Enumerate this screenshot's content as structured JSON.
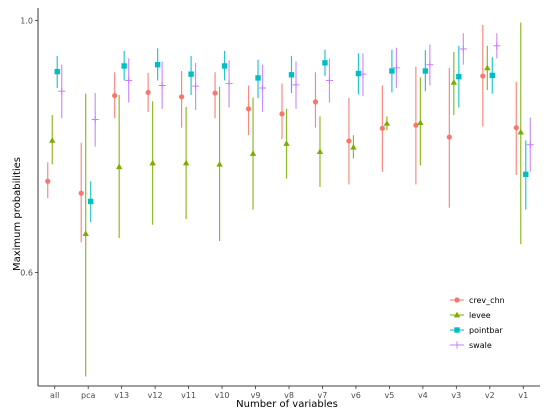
{
  "chart_data": {
    "type": "scatter",
    "title": "",
    "xlabel": "Number of variables",
    "ylabel": "Maximum probabilities",
    "categories": [
      "all",
      "pca",
      "v13",
      "v12",
      "v11",
      "v10",
      "v9",
      "v8",
      "v7",
      "v6",
      "v5",
      "v4",
      "v3",
      "v2",
      "v1"
    ],
    "y_ticks": [
      "0.6",
      "1.0"
    ],
    "ylim": [
      0.42,
      1.02
    ],
    "grid": false,
    "legend_placement": "bottom-right",
    "series": [
      {
        "name": "crev_chn",
        "color": "#F8766D",
        "marker": "circle",
        "points": [
          {
            "x": "all",
            "y": 0.745,
            "low": 0.718,
            "high": 0.775
          },
          {
            "x": "pca",
            "y": 0.726,
            "low": 0.648,
            "high": 0.806
          },
          {
            "x": "v13",
            "y": 0.881,
            "low": 0.845,
            "high": 0.918
          },
          {
            "x": "v12",
            "y": 0.886,
            "low": 0.855,
            "high": 0.917
          },
          {
            "x": "v11",
            "y": 0.879,
            "low": 0.83,
            "high": 0.92
          },
          {
            "x": "v10",
            "y": 0.885,
            "low": 0.845,
            "high": 0.918
          },
          {
            "x": "v9",
            "y": 0.86,
            "low": 0.818,
            "high": 0.897
          },
          {
            "x": "v8",
            "y": 0.852,
            "low": 0.812,
            "high": 0.9
          },
          {
            "x": "v7",
            "y": 0.871,
            "low": 0.83,
            "high": 0.918
          },
          {
            "x": "v6",
            "y": 0.809,
            "low": 0.74,
            "high": 0.877
          },
          {
            "x": "v5",
            "y": 0.829,
            "low": 0.76,
            "high": 0.897
          },
          {
            "x": "v4",
            "y": 0.834,
            "low": 0.74,
            "high": 0.927
          },
          {
            "x": "v3",
            "y": 0.815,
            "low": 0.703,
            "high": 0.925
          },
          {
            "x": "v2",
            "y": 0.912,
            "low": 0.832,
            "high": 0.993
          },
          {
            "x": "v1",
            "y": 0.83,
            "low": 0.755,
            "high": 0.903
          }
        ]
      },
      {
        "name": "levee",
        "color": "#7CAE00",
        "marker": "triangle",
        "points": [
          {
            "x": "all",
            "y": 0.81,
            "low": 0.772,
            "high": 0.85
          },
          {
            "x": "pca",
            "y": 0.662,
            "low": 0.435,
            "high": 0.884
          },
          {
            "x": "v13",
            "y": 0.768,
            "low": 0.655,
            "high": 0.882
          },
          {
            "x": "v12",
            "y": 0.774,
            "low": 0.676,
            "high": 0.872
          },
          {
            "x": "v11",
            "y": 0.774,
            "low": 0.685,
            "high": 0.863
          },
          {
            "x": "v10",
            "y": 0.772,
            "low": 0.65,
            "high": 0.895
          },
          {
            "x": "v9",
            "y": 0.789,
            "low": 0.7,
            "high": 0.878
          },
          {
            "x": "v8",
            "y": 0.805,
            "low": 0.749,
            "high": 0.86
          },
          {
            "x": "v7",
            "y": 0.792,
            "low": 0.736,
            "high": 0.848
          },
          {
            "x": "v6",
            "y": 0.799,
            "low": 0.781,
            "high": 0.818
          },
          {
            "x": "v5",
            "y": 0.837,
            "low": 0.826,
            "high": 0.848
          },
          {
            "x": "v4",
            "y": 0.838,
            "low": 0.77,
            "high": 0.91
          },
          {
            "x": "v3",
            "y": 0.902,
            "low": 0.85,
            "high": 0.95
          },
          {
            "x": "v2",
            "y": 0.925,
            "low": 0.89,
            "high": 0.96
          },
          {
            "x": "v1",
            "y": 0.823,
            "low": 0.645,
            "high": 0.997
          }
        ]
      },
      {
        "name": "pointbar",
        "color": "#00BFC4",
        "marker": "square",
        "points": [
          {
            "x": "all",
            "y": 0.919,
            "low": 0.893,
            "high": 0.944
          },
          {
            "x": "pca",
            "y": 0.713,
            "low": 0.68,
            "high": 0.745
          },
          {
            "x": "v13",
            "y": 0.928,
            "low": 0.905,
            "high": 0.952
          },
          {
            "x": "v12",
            "y": 0.93,
            "low": 0.905,
            "high": 0.956
          },
          {
            "x": "v11",
            "y": 0.915,
            "low": 0.882,
            "high": 0.944
          },
          {
            "x": "v10",
            "y": 0.928,
            "low": 0.905,
            "high": 0.952
          },
          {
            "x": "v9",
            "y": 0.909,
            "low": 0.877,
            "high": 0.938
          },
          {
            "x": "v8",
            "y": 0.914,
            "low": 0.885,
            "high": 0.944
          },
          {
            "x": "v7",
            "y": 0.933,
            "low": 0.912,
            "high": 0.954
          },
          {
            "x": "v6",
            "y": 0.916,
            "low": 0.883,
            "high": 0.948
          },
          {
            "x": "v5",
            "y": 0.92,
            "low": 0.886,
            "high": 0.954
          },
          {
            "x": "v4",
            "y": 0.92,
            "low": 0.888,
            "high": 0.953
          },
          {
            "x": "v3",
            "y": 0.911,
            "low": 0.862,
            "high": 0.96
          },
          {
            "x": "v2",
            "y": 0.913,
            "low": 0.884,
            "high": 0.942
          },
          {
            "x": "v1",
            "y": 0.756,
            "low": 0.7,
            "high": 0.81
          }
        ]
      },
      {
        "name": "swale",
        "color": "#C77CFF",
        "marker": "plus",
        "points": [
          {
            "x": "all",
            "y": 0.888,
            "low": 0.845,
            "high": 0.93
          },
          {
            "x": "pca",
            "y": 0.843,
            "low": 0.8,
            "high": 0.885
          },
          {
            "x": "v13",
            "y": 0.905,
            "low": 0.87,
            "high": 0.94
          },
          {
            "x": "v12",
            "y": 0.897,
            "low": 0.86,
            "high": 0.935
          },
          {
            "x": "v11",
            "y": 0.896,
            "low": 0.858,
            "high": 0.933
          },
          {
            "x": "v10",
            "y": 0.9,
            "low": 0.862,
            "high": 0.937
          },
          {
            "x": "v9",
            "y": 0.893,
            "low": 0.855,
            "high": 0.93
          },
          {
            "x": "v8",
            "y": 0.898,
            "low": 0.86,
            "high": 0.935
          },
          {
            "x": "v7",
            "y": 0.905,
            "low": 0.87,
            "high": 0.94
          },
          {
            "x": "v6",
            "y": 0.915,
            "low": 0.88,
            "high": 0.948
          },
          {
            "x": "v5",
            "y": 0.925,
            "low": 0.893,
            "high": 0.957
          },
          {
            "x": "v4",
            "y": 0.93,
            "low": 0.897,
            "high": 0.962
          },
          {
            "x": "v3",
            "y": 0.955,
            "low": 0.93,
            "high": 0.98
          },
          {
            "x": "v2",
            "y": 0.96,
            "low": 0.94,
            "high": 0.98
          },
          {
            "x": "v1",
            "y": 0.803,
            "low": 0.76,
            "high": 0.846
          }
        ]
      }
    ]
  }
}
